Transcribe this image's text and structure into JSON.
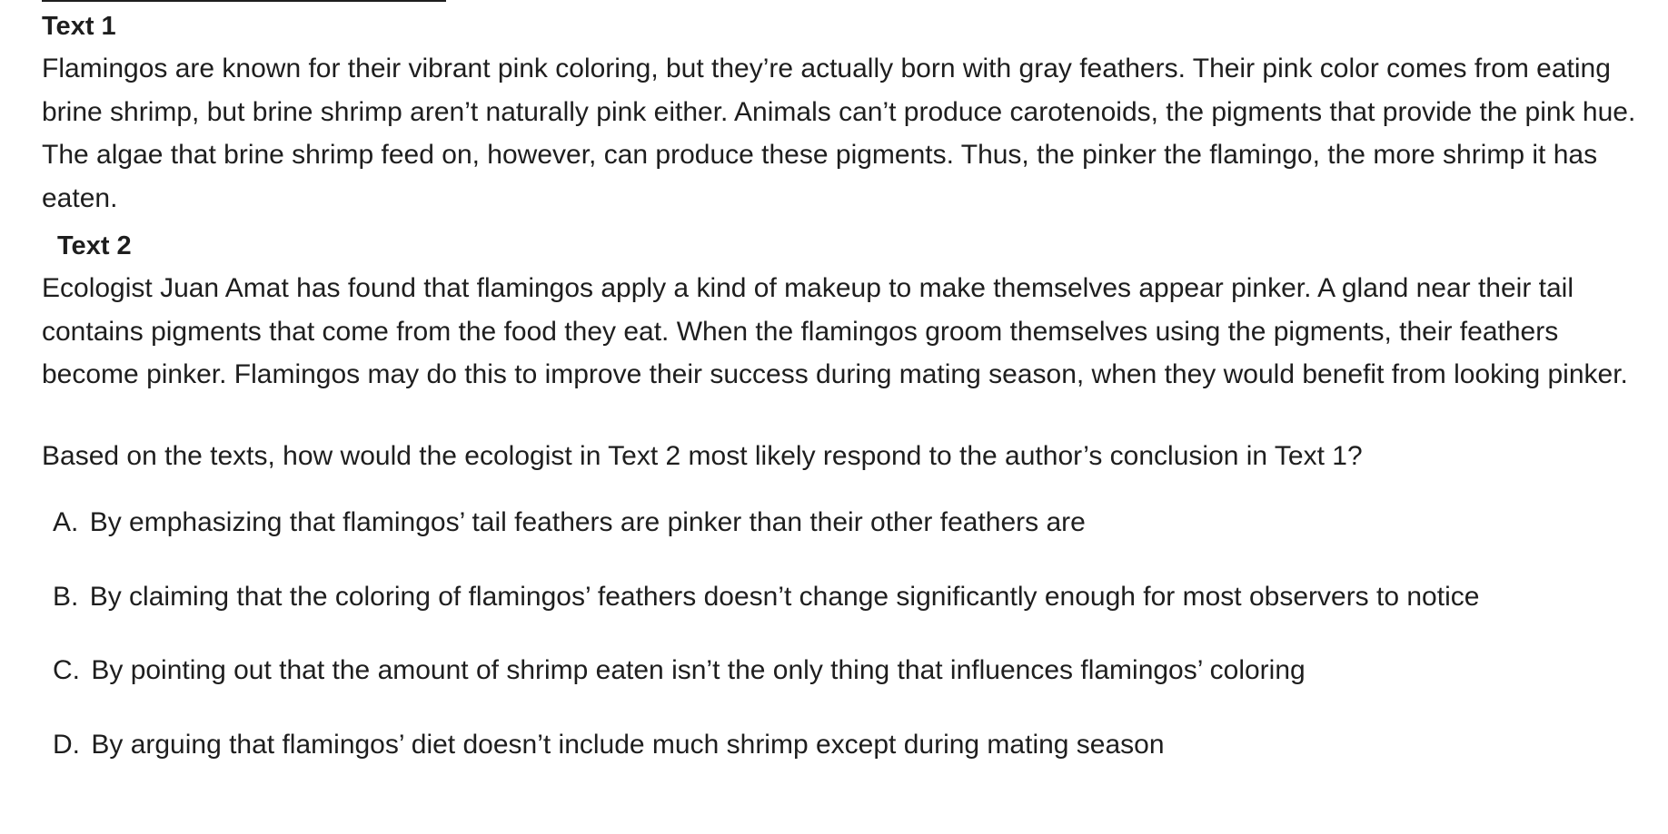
{
  "text1": {
    "heading": "Text 1",
    "body": "Flamingos are known for their vibrant pink coloring, but they’re actually born with gray feathers. Their pink color comes from eating brine shrimp, but brine shrimp aren’t naturally pink either. Animals can’t produce carotenoids, the pigments that provide the pink hue. The algae that brine shrimp feed on, however, can produce these pigments. Thus, the pinker the flamingo, the more shrimp it has eaten."
  },
  "text2": {
    "heading": "Text 2",
    "body": "Ecologist Juan Amat has found that flamingos apply a kind of makeup to make themselves appear pinker. A gland near their tail contains pigments that come from the food they eat. When the flamingos groom themselves using the pigments, their feathers become pinker. Flamingos may do this to improve their success during mating season, when they would benefit from looking pinker."
  },
  "question": "Based on the texts, how would the ecologist in Text 2 most likely respond to the author’s conclusion in Text 1?",
  "choices": [
    {
      "letter": "A.",
      "text": "By emphasizing that flamingos’ tail feathers are pinker than their other feathers are"
    },
    {
      "letter": "B.",
      "text": "By claiming that the coloring of flamingos’ feathers doesn’t change significantly enough for most observers to notice"
    },
    {
      "letter": "C.",
      "text": "By pointing out that the amount of shrimp eaten isn’t the only thing that influences flamingos’ coloring"
    },
    {
      "letter": "D.",
      "text": "By arguing that flamingos’ diet doesn’t include much shrimp except during mating season"
    }
  ]
}
